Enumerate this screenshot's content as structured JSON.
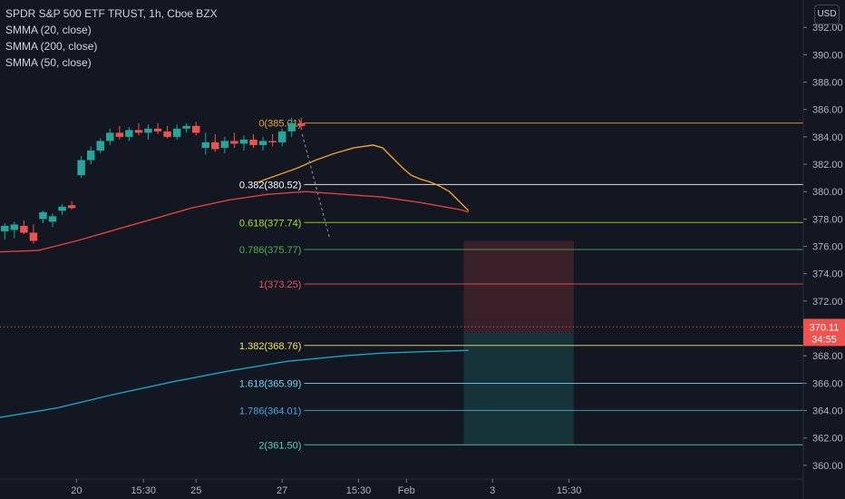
{
  "legend": {
    "title": "SPDR S&P 500 ETF TRUST, 1h, Cboe BZX",
    "studies": [
      "SMMA (20, close)",
      "SMMA (200, close)",
      "SMMA (50, close)"
    ]
  },
  "currency_button": "USD",
  "colors": {
    "background": "#131722",
    "up": "#26a69a",
    "down": "#ef5350",
    "smma20": "#f0a030",
    "smma50": "#e0413c",
    "smma200": "#1ba3c6"
  },
  "chart_data": {
    "type": "candlestick",
    "y_axis": {
      "range": [
        359,
        394
      ],
      "ticks": [
        "360.00",
        "362.00",
        "364.00",
        "366.00",
        "368.00",
        "370.00",
        "372.00",
        "374.00",
        "376.00",
        "378.00",
        "380.00",
        "382.00",
        "384.00",
        "386.00",
        "388.00",
        "390.00",
        "392.00"
      ]
    },
    "x_axis": {
      "range": [
        0,
        84
      ],
      "tick_labels": [
        {
          "x": 8,
          "label": "20"
        },
        {
          "x": 15,
          "label": "15:30"
        },
        {
          "x": 20.5,
          "label": "25"
        },
        {
          "x": 29.5,
          "label": "27"
        },
        {
          "x": 37.5,
          "label": "15:30"
        },
        {
          "x": 42.5,
          "label": "Feb"
        },
        {
          "x": 51.5,
          "label": "3"
        },
        {
          "x": 59.5,
          "label": "15:30"
        }
      ]
    },
    "candles": [
      {
        "x": 0.5,
        "o": 377.1,
        "h": 377.7,
        "l": 376.5,
        "c": 377.5
      },
      {
        "x": 1.5,
        "o": 377.2,
        "h": 377.8,
        "l": 376.6,
        "c": 377.6
      },
      {
        "x": 2.5,
        "o": 377.5,
        "h": 377.9,
        "l": 376.9,
        "c": 377.0
      },
      {
        "x": 3.5,
        "o": 377.0,
        "h": 377.6,
        "l": 376.2,
        "c": 376.4
      },
      {
        "x": 4.5,
        "o": 378.0,
        "h": 378.6,
        "l": 377.7,
        "c": 378.5
      },
      {
        "x": 5.5,
        "o": 377.8,
        "h": 378.4,
        "l": 377.4,
        "c": 378.2
      },
      {
        "x": 6.5,
        "o": 378.6,
        "h": 379.1,
        "l": 378.3,
        "c": 378.9
      },
      {
        "x": 7.5,
        "o": 379.0,
        "h": 379.3,
        "l": 378.7,
        "c": 378.8
      },
      {
        "x": 8.5,
        "o": 381.2,
        "h": 382.6,
        "l": 381.0,
        "c": 382.3
      },
      {
        "x": 9.5,
        "o": 382.3,
        "h": 383.3,
        "l": 382.0,
        "c": 383.0
      },
      {
        "x": 10.5,
        "o": 383.0,
        "h": 383.9,
        "l": 382.8,
        "c": 383.7
      },
      {
        "x": 11.5,
        "o": 383.7,
        "h": 384.6,
        "l": 383.4,
        "c": 384.3
      },
      {
        "x": 12.5,
        "o": 384.3,
        "h": 384.8,
        "l": 383.8,
        "c": 384.0
      },
      {
        "x": 13.5,
        "o": 384.0,
        "h": 384.7,
        "l": 383.7,
        "c": 384.5
      },
      {
        "x": 14.5,
        "o": 384.5,
        "h": 385.0,
        "l": 384.1,
        "c": 384.3
      },
      {
        "x": 15.5,
        "o": 384.3,
        "h": 384.9,
        "l": 383.8,
        "c": 384.6
      },
      {
        "x": 16.5,
        "o": 384.6,
        "h": 385.0,
        "l": 384.2,
        "c": 384.4
      },
      {
        "x": 17.5,
        "o": 384.4,
        "h": 384.8,
        "l": 383.9,
        "c": 384.0
      },
      {
        "x": 18.5,
        "o": 384.0,
        "h": 384.9,
        "l": 383.8,
        "c": 384.6
      },
      {
        "x": 19.5,
        "o": 384.6,
        "h": 385.0,
        "l": 384.3,
        "c": 384.8
      },
      {
        "x": 20.5,
        "o": 384.8,
        "h": 385.1,
        "l": 384.1,
        "c": 384.3
      },
      {
        "x": 21.5,
        "o": 383.2,
        "h": 384.3,
        "l": 382.7,
        "c": 383.6
      },
      {
        "x": 22.5,
        "o": 383.6,
        "h": 384.2,
        "l": 382.9,
        "c": 383.1
      },
      {
        "x": 23.5,
        "o": 383.2,
        "h": 384.0,
        "l": 382.8,
        "c": 383.7
      },
      {
        "x": 24.5,
        "o": 383.7,
        "h": 384.3,
        "l": 383.2,
        "c": 383.5
      },
      {
        "x": 25.5,
        "o": 383.5,
        "h": 384.1,
        "l": 383.0,
        "c": 383.8
      },
      {
        "x": 26.5,
        "o": 383.8,
        "h": 384.2,
        "l": 383.2,
        "c": 383.4
      },
      {
        "x": 27.5,
        "o": 383.4,
        "h": 384.0,
        "l": 383.0,
        "c": 383.7
      },
      {
        "x": 28.5,
        "o": 383.7,
        "h": 384.2,
        "l": 383.3,
        "c": 383.6
      },
      {
        "x": 29.5,
        "o": 383.6,
        "h": 384.6,
        "l": 383.3,
        "c": 384.4
      },
      {
        "x": 30.5,
        "o": 384.4,
        "h": 385.4,
        "l": 384.0,
        "c": 385.0
      },
      {
        "x": 31.5,
        "o": 385.0,
        "h": 385.4,
        "l": 384.5,
        "c": 384.8
      }
    ],
    "smma": [
      {
        "name": "SMMA (20, close)",
        "color": "#f0a030",
        "points": [
          [
            27,
            380.7
          ],
          [
            29,
            381.2
          ],
          [
            31,
            381.7
          ],
          [
            33,
            382.3
          ],
          [
            35,
            382.8
          ],
          [
            37,
            383.2
          ],
          [
            39,
            383.4
          ],
          [
            40,
            383.2
          ],
          [
            41,
            382.5
          ],
          [
            42,
            381.8
          ],
          [
            43,
            381.2
          ],
          [
            44,
            380.9
          ],
          [
            45,
            380.7
          ],
          [
            46,
            380.4
          ],
          [
            47,
            380.0
          ],
          [
            48,
            379.3
          ],
          [
            49,
            378.6
          ]
        ]
      },
      {
        "name": "SMMA (50, close)",
        "color": "#e0413c",
        "points": [
          [
            0,
            375.6
          ],
          [
            4,
            375.7
          ],
          [
            8,
            376.4
          ],
          [
            12,
            377.2
          ],
          [
            16,
            378.0
          ],
          [
            20,
            378.8
          ],
          [
            24,
            379.4
          ],
          [
            28,
            379.8
          ],
          [
            32,
            380.0
          ],
          [
            36,
            379.8
          ],
          [
            40,
            379.6
          ],
          [
            44,
            379.2
          ],
          [
            48,
            378.7
          ],
          [
            49,
            378.5
          ]
        ]
      },
      {
        "name": "SMMA (200, close)",
        "color": "#1ba3c6",
        "points": [
          [
            0,
            363.5
          ],
          [
            6,
            364.2
          ],
          [
            12,
            365.2
          ],
          [
            18,
            366.1
          ],
          [
            24,
            366.9
          ],
          [
            30,
            367.6
          ],
          [
            36,
            368.0
          ],
          [
            40,
            368.2
          ],
          [
            44,
            368.3
          ],
          [
            49,
            368.4
          ]
        ]
      }
    ],
    "fibonacci_levels": [
      {
        "ratio": "0",
        "value": 385.01,
        "label": "0(385.01)",
        "color": "#f0a030"
      },
      {
        "ratio": "0.382",
        "value": 380.52,
        "label": "0.382(380.52)",
        "color": "#ffffff"
      },
      {
        "ratio": "0.618",
        "value": 377.74,
        "label": "0.618(377.74)",
        "color": "#a6e22e"
      },
      {
        "ratio": "0.786",
        "value": 375.77,
        "label": "0.786(375.77)",
        "color": "#4caf50"
      },
      {
        "ratio": "1",
        "value": 373.25,
        "label": "1(373.25)",
        "color": "#ef5350"
      },
      {
        "ratio": "1.382",
        "value": 368.76,
        "label": "1.382(368.76)",
        "color": "#f5e663"
      },
      {
        "ratio": "1.618",
        "value": 365.99,
        "label": "1.618(365.99)",
        "color": "#6fd6f5"
      },
      {
        "ratio": "1.786",
        "value": 364.01,
        "label": "1.786(364.01)",
        "color": "#4aa8e0"
      },
      {
        "ratio": "2",
        "value": 361.5,
        "label": "2(361.50)",
        "color": "#4ed6c0"
      }
    ],
    "position_box": {
      "x_start": 48.5,
      "x_end": 60,
      "entry": 369.7,
      "stop": 376.4,
      "target": 361.5
    },
    "last_price": {
      "value": 370.11,
      "label": "370.11",
      "countdown": "34:55"
    }
  }
}
